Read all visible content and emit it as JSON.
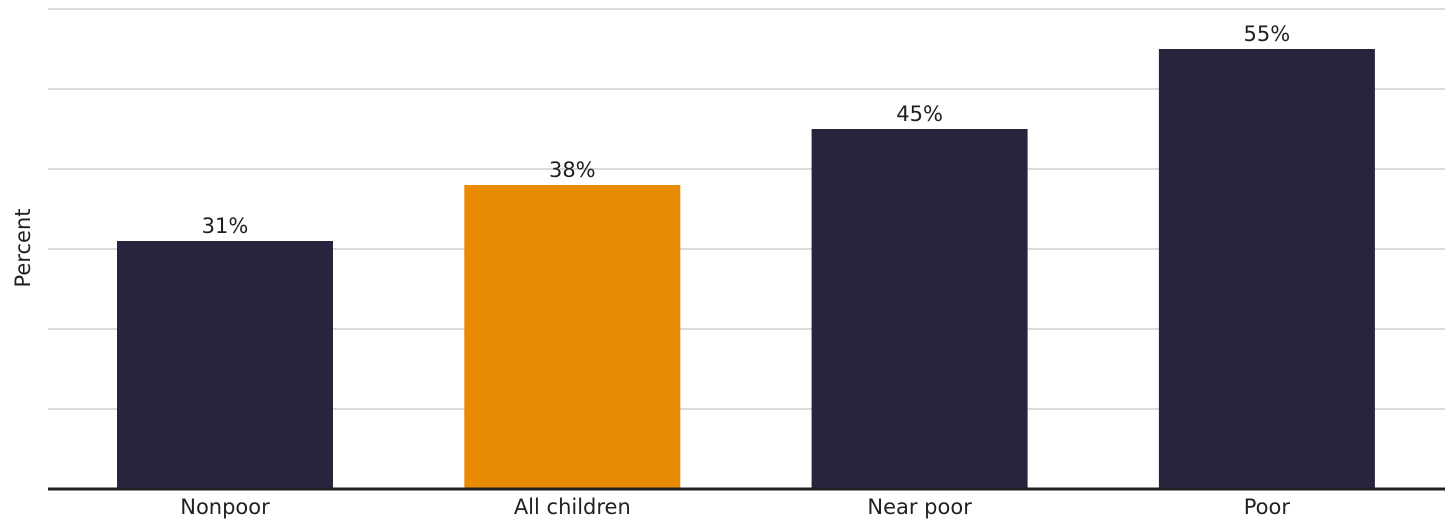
{
  "chart_data": {
    "type": "bar",
    "title": "",
    "xlabel": "",
    "ylabel": "Percent",
    "categories": [
      "Nonpoor",
      "All children",
      "Near poor",
      "Poor"
    ],
    "values": [
      31,
      38,
      45,
      55
    ],
    "value_labels": [
      "31%",
      "38%",
      "45%",
      "55%"
    ],
    "highlight_category": "All children",
    "colors": {
      "default": "#29233d",
      "highlight": "#e98b02"
    },
    "ylim": [
      0,
      60
    ],
    "grid": true,
    "gridline_step": 10,
    "legend": "none"
  }
}
